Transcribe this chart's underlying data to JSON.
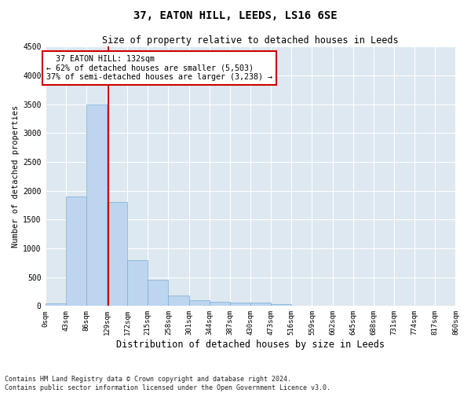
{
  "title": "37, EATON HILL, LEEDS, LS16 6SE",
  "subtitle": "Size of property relative to detached houses in Leeds",
  "xlabel": "Distribution of detached houses by size in Leeds",
  "ylabel": "Number of detached properties",
  "bin_edges": [
    0,
    43,
    86,
    129,
    172,
    215,
    258,
    301,
    344,
    387,
    430,
    473,
    516,
    559,
    602,
    645,
    688,
    731,
    774,
    817,
    860
  ],
  "bar_heights": [
    50,
    1900,
    3500,
    1800,
    800,
    450,
    175,
    100,
    75,
    55,
    55,
    25,
    8,
    4,
    2,
    1,
    1,
    0,
    0,
    0
  ],
  "bar_color": "#bdd5ee",
  "bar_edgecolor": "#7aadd4",
  "property_size": 132,
  "vline_color": "#cc0000",
  "annotation_text": "  37 EATON HILL: 132sqm  \n← 62% of detached houses are smaller (5,503)\n37% of semi-detached houses are larger (3,238) →",
  "annotation_box_color": "#cc0000",
  "ylim": [
    0,
    4500
  ],
  "yticks": [
    0,
    500,
    1000,
    1500,
    2000,
    2500,
    3000,
    3500,
    4000,
    4500
  ],
  "footer": "Contains HM Land Registry data © Crown copyright and database right 2024.\nContains public sector information licensed under the Open Government Licence v3.0.",
  "bg_color": "#dde8f0",
  "plot_bg_color": "#ffffff",
  "title_fontsize": 10,
  "subtitle_fontsize": 8.5,
  "xlabel_fontsize": 8.5,
  "ylabel_fontsize": 7.5,
  "tick_fontsize": 6.5,
  "annotation_fontsize": 7.2,
  "footer_fontsize": 6.0
}
